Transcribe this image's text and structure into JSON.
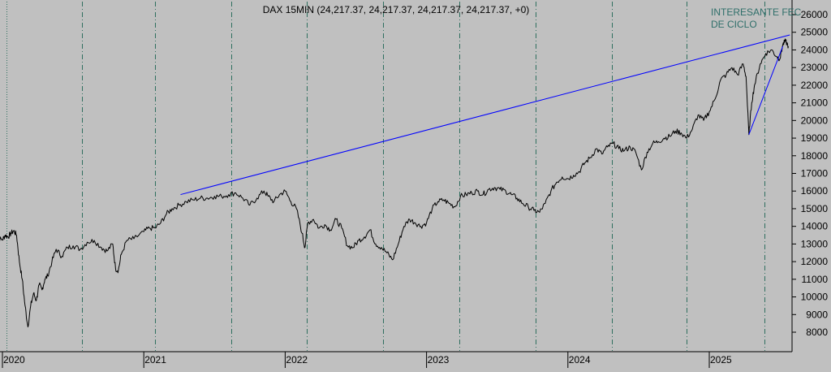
{
  "header": {
    "title": "DAX 15MIN (24,217.37, 24,217.37, 24,217.37, 24,217.37, +0)"
  },
  "annotation": {
    "line1": "INTERESANTE FEC",
    "line2": "DE CICLO"
  },
  "colors": {
    "background": "#c0c0c0",
    "price_line": "#000000",
    "trend_lines": "#0000ff",
    "cycle_lines": "#2f6f5f",
    "annotation_text": "#2f6f6a"
  },
  "chart_data": {
    "type": "line",
    "title": "DAX 15MIN (24,217.37, 24,217.37, 24,217.37, 24,217.37, +0)",
    "xlabel": "",
    "ylabel": "",
    "x_ticks": [
      "2020",
      "2021",
      "2022",
      "2023",
      "2024",
      "2025"
    ],
    "y_ticks": [
      8000,
      9000,
      10000,
      11000,
      12000,
      13000,
      14000,
      15000,
      16000,
      17000,
      18000,
      19000,
      20000,
      21000,
      22000,
      23000,
      24000,
      25000,
      26000
    ],
    "ylim": [
      7200,
      26200
    ],
    "y_axis_position": "right",
    "grid": false,
    "series": [
      {
        "values": [
          [
            2019.95,
            13200
          ],
          [
            2019.97,
            13300
          ],
          [
            2020.0,
            13250
          ],
          [
            2020.02,
            13500
          ],
          [
            2020.04,
            13400
          ],
          [
            2020.06,
            13600
          ],
          [
            2020.08,
            13750
          ],
          [
            2020.1,
            13500
          ],
          [
            2020.12,
            12000
          ],
          [
            2020.14,
            11000
          ],
          [
            2020.16,
            9500
          ],
          [
            2020.18,
            8300
          ],
          [
            2020.2,
            9500
          ],
          [
            2020.22,
            10200
          ],
          [
            2020.24,
            9800
          ],
          [
            2020.26,
            10700
          ],
          [
            2020.28,
            10400
          ],
          [
            2020.3,
            11000
          ],
          [
            2020.32,
            11200
          ],
          [
            2020.35,
            12000
          ],
          [
            2020.38,
            12700
          ],
          [
            2020.42,
            12300
          ],
          [
            2020.46,
            12800
          ],
          [
            2020.5,
            12900
          ],
          [
            2020.55,
            12700
          ],
          [
            2020.6,
            13100
          ],
          [
            2020.65,
            13200
          ],
          [
            2020.7,
            12800
          ],
          [
            2020.74,
            12600
          ],
          [
            2020.78,
            13000
          ],
          [
            2020.8,
            11600
          ],
          [
            2020.82,
            11500
          ],
          [
            2020.84,
            12400
          ],
          [
            2020.88,
            13200
          ],
          [
            2020.93,
            13300
          ],
          [
            2021.0,
            13700
          ],
          [
            2021.04,
            13900
          ],
          [
            2021.08,
            13900
          ],
          [
            2021.12,
            14200
          ],
          [
            2021.16,
            14700
          ],
          [
            2021.2,
            15000
          ],
          [
            2021.25,
            15200
          ],
          [
            2021.3,
            15400
          ],
          [
            2021.35,
            15500
          ],
          [
            2021.4,
            15600
          ],
          [
            2021.45,
            15600
          ],
          [
            2021.5,
            15700
          ],
          [
            2021.55,
            15700
          ],
          [
            2021.6,
            15800
          ],
          [
            2021.65,
            15900
          ],
          [
            2021.7,
            15600
          ],
          [
            2021.75,
            15200
          ],
          [
            2021.8,
            15600
          ],
          [
            2021.85,
            16000
          ],
          [
            2021.88,
            15700
          ],
          [
            2021.92,
            15400
          ],
          [
            2021.96,
            15800
          ],
          [
            2022.0,
            16000
          ],
          [
            2022.04,
            15400
          ],
          [
            2022.08,
            15000
          ],
          [
            2022.12,
            13600
          ],
          [
            2022.14,
            12800
          ],
          [
            2022.16,
            14200
          ],
          [
            2022.2,
            14400
          ],
          [
            2022.24,
            13900
          ],
          [
            2022.28,
            14100
          ],
          [
            2022.32,
            13800
          ],
          [
            2022.36,
            14400
          ],
          [
            2022.4,
            13900
          ],
          [
            2022.44,
            12900
          ],
          [
            2022.48,
            12800
          ],
          [
            2022.52,
            13200
          ],
          [
            2022.56,
            13400
          ],
          [
            2022.6,
            13800
          ],
          [
            2022.64,
            13000
          ],
          [
            2022.68,
            12800
          ],
          [
            2022.72,
            12500
          ],
          [
            2022.76,
            12100
          ],
          [
            2022.8,
            13000
          ],
          [
            2022.84,
            14000
          ],
          [
            2022.88,
            14400
          ],
          [
            2022.92,
            14200
          ],
          [
            2022.96,
            14000
          ],
          [
            2023.0,
            14200
          ],
          [
            2023.04,
            15000
          ],
          [
            2023.08,
            15400
          ],
          [
            2023.12,
            15500
          ],
          [
            2023.16,
            15300
          ],
          [
            2023.2,
            15100
          ],
          [
            2023.24,
            15700
          ],
          [
            2023.28,
            15800
          ],
          [
            2023.32,
            15900
          ],
          [
            2023.36,
            16000
          ],
          [
            2023.4,
            15800
          ],
          [
            2023.44,
            16100
          ],
          [
            2023.48,
            16200
          ],
          [
            2023.52,
            16100
          ],
          [
            2023.56,
            16000
          ],
          [
            2023.6,
            15800
          ],
          [
            2023.64,
            15600
          ],
          [
            2023.68,
            15300
          ],
          [
            2023.72,
            15100
          ],
          [
            2023.76,
            14900
          ],
          [
            2023.8,
            14800
          ],
          [
            2023.84,
            15300
          ],
          [
            2023.88,
            16000
          ],
          [
            2023.92,
            16500
          ],
          [
            2023.96,
            16800
          ],
          [
            2024.0,
            16700
          ],
          [
            2024.04,
            16900
          ],
          [
            2024.08,
            17100
          ],
          [
            2024.12,
            17600
          ],
          [
            2024.16,
            17900
          ],
          [
            2024.2,
            18400
          ],
          [
            2024.24,
            18100
          ],
          [
            2024.28,
            18500
          ],
          [
            2024.32,
            18700
          ],
          [
            2024.36,
            18400
          ],
          [
            2024.4,
            18300
          ],
          [
            2024.44,
            18500
          ],
          [
            2024.48,
            18200
          ],
          [
            2024.52,
            17200
          ],
          [
            2024.56,
            18200
          ],
          [
            2024.6,
            18700
          ],
          [
            2024.64,
            18800
          ],
          [
            2024.68,
            19000
          ],
          [
            2024.72,
            19100
          ],
          [
            2024.76,
            19400
          ],
          [
            2024.8,
            19300
          ],
          [
            2024.84,
            19000
          ],
          [
            2024.88,
            19500
          ],
          [
            2024.92,
            20300
          ],
          [
            2024.96,
            20000
          ],
          [
            2025.0,
            20500
          ],
          [
            2025.04,
            21200
          ],
          [
            2025.08,
            22300
          ],
          [
            2025.12,
            22600
          ],
          [
            2025.16,
            23000
          ],
          [
            2025.2,
            22600
          ],
          [
            2025.24,
            23200
          ],
          [
            2025.26,
            22500
          ],
          [
            2025.28,
            19200
          ],
          [
            2025.3,
            21000
          ],
          [
            2025.32,
            22000
          ],
          [
            2025.36,
            23200
          ],
          [
            2025.4,
            23800
          ],
          [
            2025.44,
            24000
          ],
          [
            2025.48,
            23600
          ],
          [
            2025.5,
            23500
          ],
          [
            2025.52,
            24300
          ],
          [
            2025.54,
            24500
          ],
          [
            2025.56,
            24200
          ]
        ]
      }
    ],
    "trend_lines": [
      {
        "from": [
          2021.26,
          15800
        ],
        "to": [
          2025.57,
          24850
        ]
      },
      {
        "from": [
          2025.28,
          19200
        ],
        "to": [
          2025.52,
          24200
        ]
      }
    ],
    "cycle_lines": [
      {
        "x": 2020.03,
        "style": "dotted"
      },
      {
        "x": 2020.56,
        "style": "dashed"
      },
      {
        "x": 2021.08,
        "style": "dashed"
      },
      {
        "x": 2021.62,
        "style": "dashed"
      },
      {
        "x": 2022.15,
        "style": "dashed"
      },
      {
        "x": 2022.69,
        "style": "dashed"
      },
      {
        "x": 2023.23,
        "style": "dashed"
      },
      {
        "x": 2023.77,
        "style": "dashed"
      },
      {
        "x": 2024.31,
        "style": "dashed"
      },
      {
        "x": 2024.84,
        "style": "dashed"
      },
      {
        "x": 2025.39,
        "style": "dashed"
      }
    ]
  }
}
